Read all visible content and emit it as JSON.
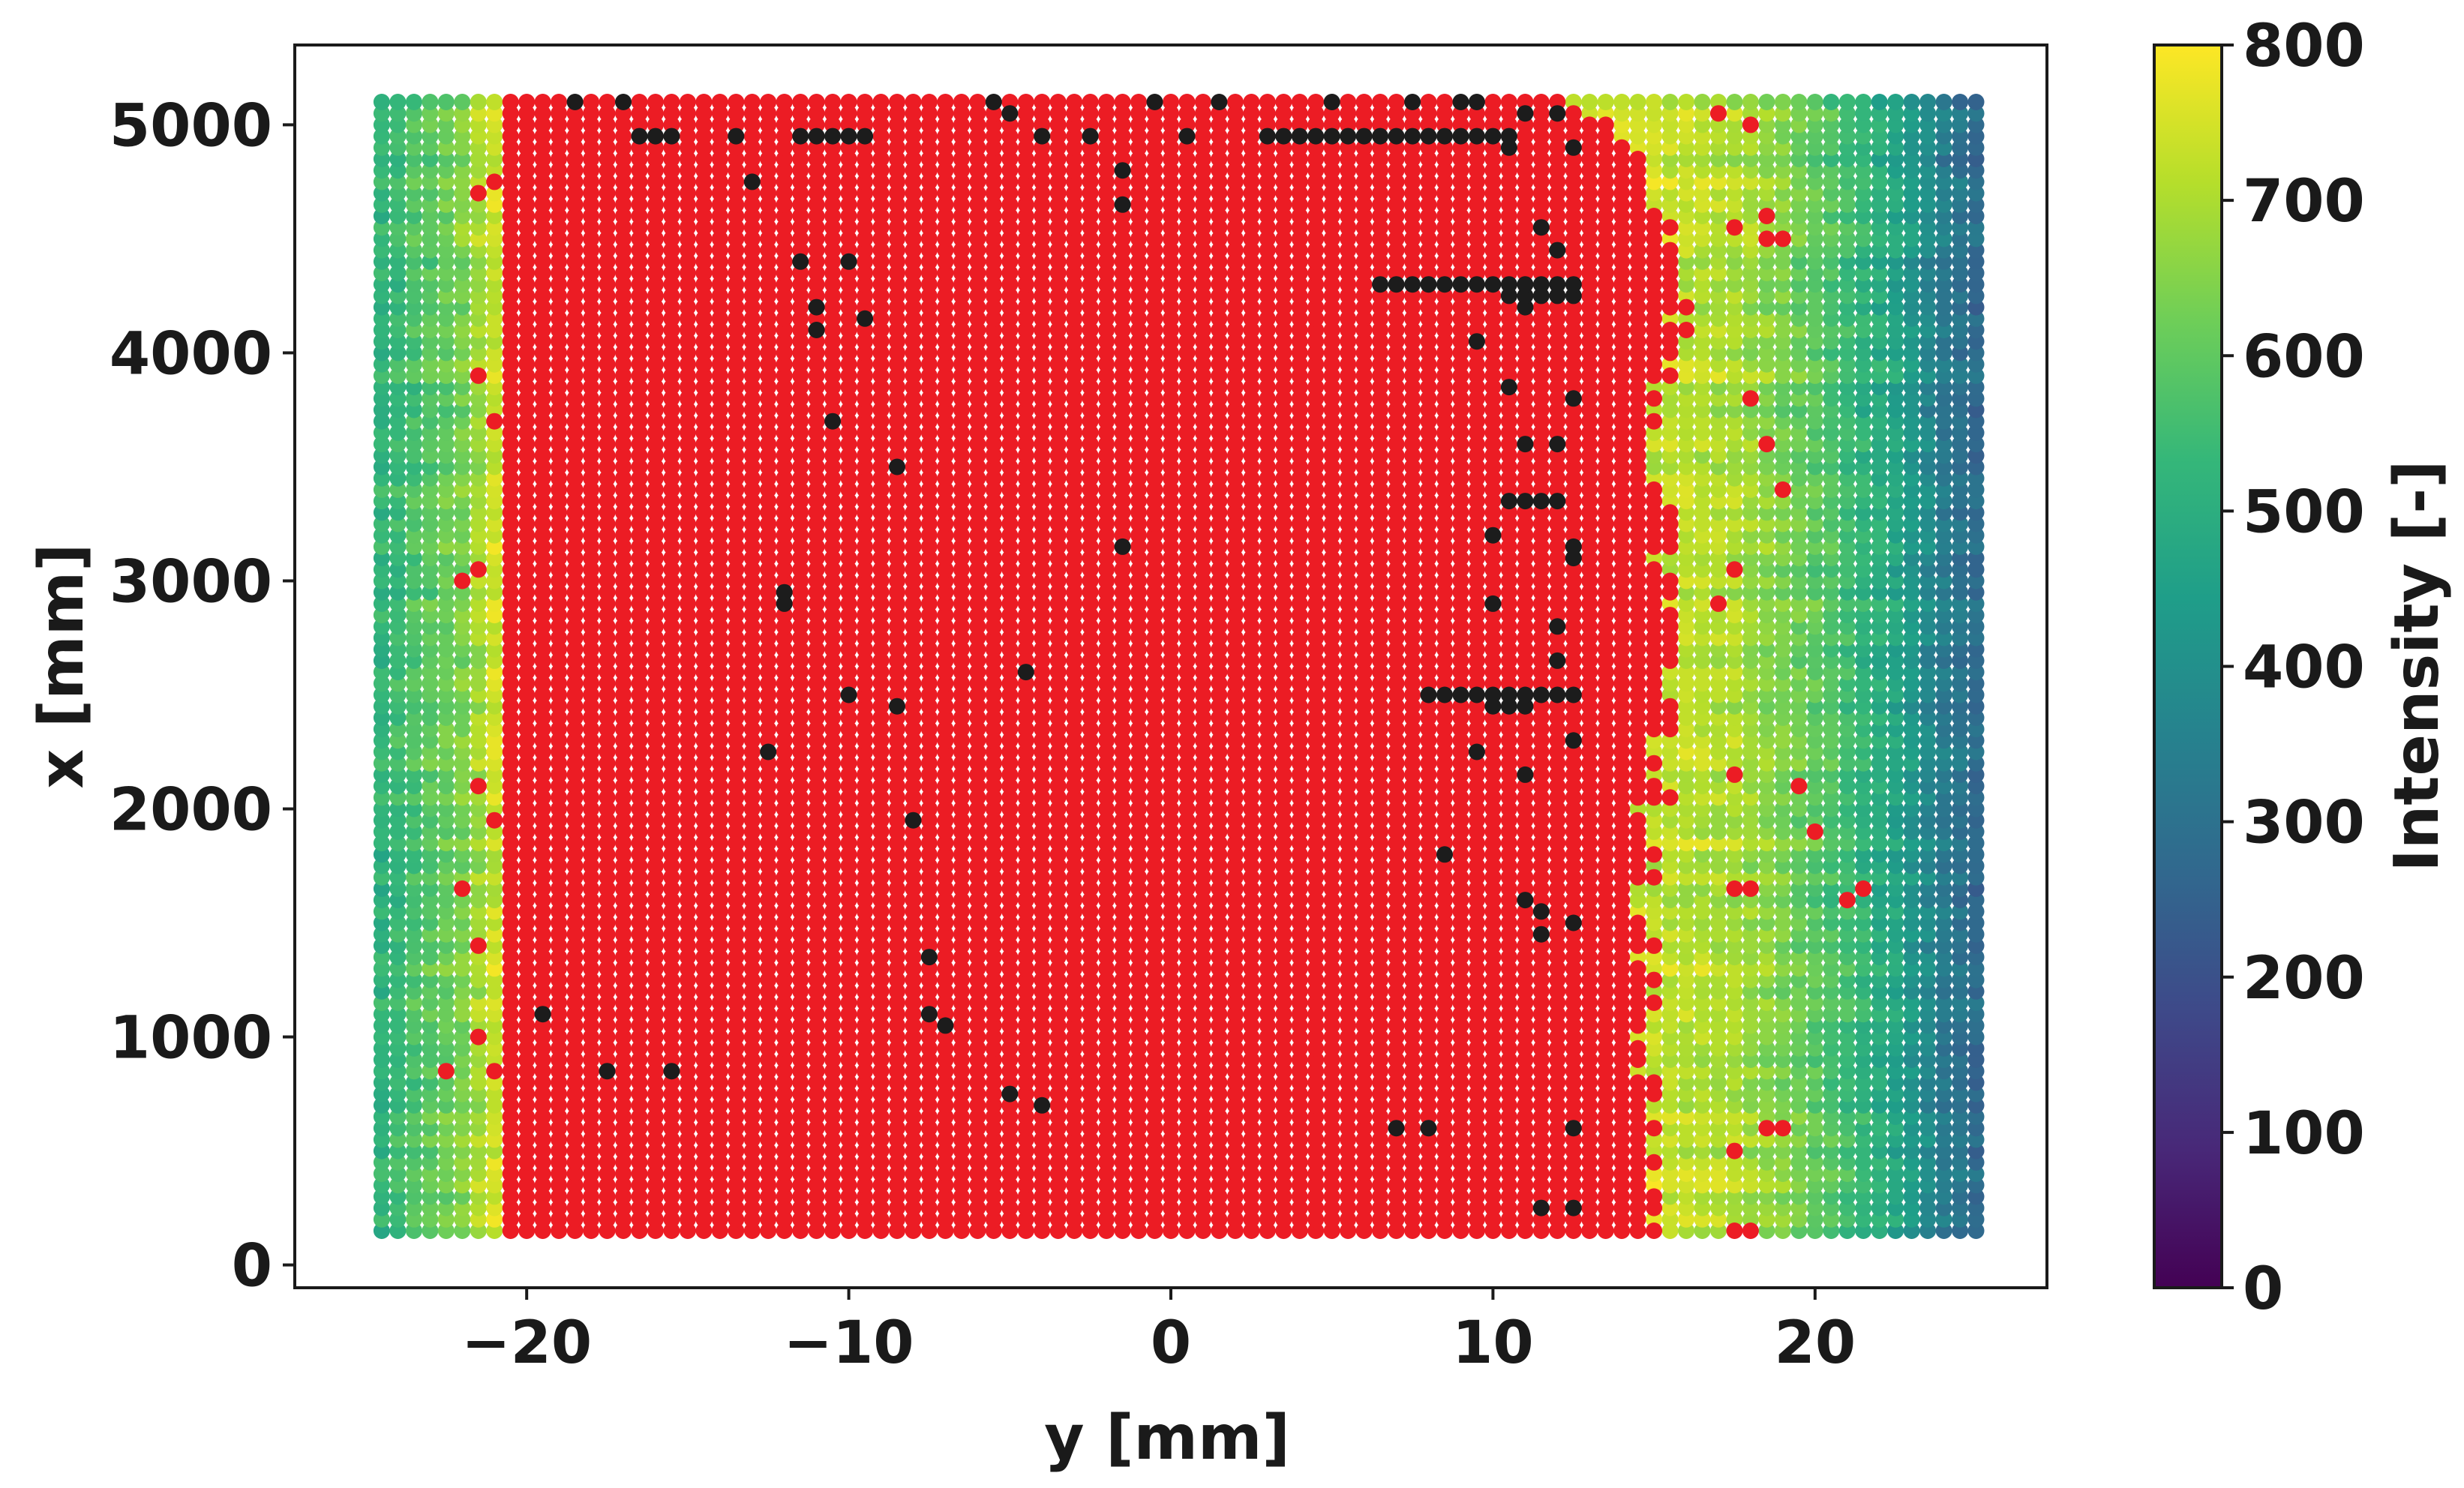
{
  "chart_data": {
    "type": "scatter",
    "title": "",
    "xlabel": "y [mm]",
    "ylabel": "x [mm]",
    "xlim": [
      -27.2,
      27.2
    ],
    "ylim": [
      -100,
      5350
    ],
    "xticks": [
      -20,
      -10,
      0,
      10,
      20
    ],
    "xtick_labels": [
      "−20",
      "−10",
      "0",
      "10",
      "20"
    ],
    "yticks": [
      0,
      1000,
      2000,
      3000,
      4000,
      5000
    ],
    "ytick_labels": [
      "0",
      "1000",
      "2000",
      "3000",
      "4000",
      "5000"
    ],
    "grid": false,
    "legend": "none",
    "grid_spec": {
      "y_values": {
        "start": -24.5,
        "end": 25.0,
        "step": 0.5
      },
      "x_values": {
        "start": 150,
        "end": 5100,
        "step": 50
      }
    },
    "intensity_field": {
      "description": "Intensity of non-flagged points rises from ~520 at the left edge to ~740 near y=-20, ~720 just right of the red region, then falls to ~300 at the right edge",
      "profile_y": [
        -24.5,
        -22.0,
        -21.0,
        12.5,
        15.0,
        17.5,
        20.0,
        22.5,
        24.0,
        25.0
      ],
      "profile_intensity": [
        520,
        640,
        740,
        740,
        730,
        700,
        600,
        470,
        330,
        280
      ]
    },
    "flagged_regions": {
      "red_color": "#ec1c24",
      "black_color": "#1c1c1c",
      "red_left_boundary_y": -20.8,
      "red_right_boundary_profile": {
        "x": [
          150,
          500,
          800,
          1200,
          1600,
          2000,
          2400,
          2800,
          3200,
          3600,
          4000,
          4400,
          4800,
          5100
        ],
        "y": [
          15.2,
          15.0,
          14.8,
          14.6,
          14.4,
          15.0,
          15.4,
          15.6,
          15.3,
          15.0,
          15.5,
          16.0,
          14.5,
          12.8
        ]
      },
      "black_cells": [
        {
          "y": -18.5,
          "x": 5100
        },
        {
          "y": -17.0,
          "x": 5100
        },
        {
          "y": -5.5,
          "x": 5100
        },
        {
          "y": -0.5,
          "x": 5100
        },
        {
          "y": 1.5,
          "x": 5100
        },
        {
          "y": 5.0,
          "x": 5100
        },
        {
          "y": 7.5,
          "x": 5100
        },
        {
          "y": 9.0,
          "x": 5100
        },
        {
          "y": 9.5,
          "x": 5100
        },
        {
          "y": 11.0,
          "x": 5050
        },
        {
          "y": 12.0,
          "x": 5050
        },
        {
          "y": -5.0,
          "x": 5050
        },
        {
          "y": -16.0,
          "x": 4950
        },
        {
          "y": -13.5,
          "x": 4950
        },
        {
          "y": -11.0,
          "x": 4950
        },
        {
          "y": -10.5,
          "x": 4950
        },
        {
          "y": -4.0,
          "x": 4950
        },
        {
          "y": -2.5,
          "x": 4950
        },
        {
          "y": 0.5,
          "x": 4950
        },
        {
          "y": 5.5,
          "x": 4950
        },
        {
          "y": 7.0,
          "x": 4950
        },
        {
          "y": 8.0,
          "x": 4950
        },
        {
          "y": 10.5,
          "x": 4900
        },
        {
          "y": 12.5,
          "x": 4900
        },
        {
          "y": -1.5,
          "x": 4800
        },
        {
          "y": -13.0,
          "x": 4750
        },
        {
          "y": -1.5,
          "x": 4650
        },
        {
          "y": 11.5,
          "x": 4550
        },
        {
          "y": 12.0,
          "x": 4450
        },
        {
          "y": -11.5,
          "x": 4400
        },
        {
          "y": -10.0,
          "x": 4400
        },
        {
          "y": 7.0,
          "x": 4300
        },
        {
          "y": 8.5,
          "x": 4300
        },
        {
          "y": 9.5,
          "x": 4300
        },
        {
          "y": 10.5,
          "x": 4300
        },
        {
          "y": 12.0,
          "x": 4300
        },
        {
          "y": 12.5,
          "x": 4250
        },
        {
          "y": 11.0,
          "x": 4200
        },
        {
          "y": -11.0,
          "x": 4200
        },
        {
          "y": -9.5,
          "x": 4150
        },
        {
          "y": -11.0,
          "x": 4100
        },
        {
          "y": 9.5,
          "x": 4050
        },
        {
          "y": 10.5,
          "x": 3850
        },
        {
          "y": 12.5,
          "x": 3800
        },
        {
          "y": -10.5,
          "x": 3700
        },
        {
          "y": 11.0,
          "x": 3600
        },
        {
          "y": 12.0,
          "x": 3600
        },
        {
          "y": -8.5,
          "x": 3500
        },
        {
          "y": 10.5,
          "x": 3350
        },
        {
          "y": 12.0,
          "x": 3350
        },
        {
          "y": 10.0,
          "x": 3200
        },
        {
          "y": 12.5,
          "x": 3150
        },
        {
          "y": -1.5,
          "x": 3150
        },
        {
          "y": 12.5,
          "x": 3100
        },
        {
          "y": -12.0,
          "x": 2950
        },
        {
          "y": -12.0,
          "x": 2900
        },
        {
          "y": 10.0,
          "x": 2900
        },
        {
          "y": 12.0,
          "x": 2800
        },
        {
          "y": 12.0,
          "x": 2650
        },
        {
          "y": -4.5,
          "x": 2600
        },
        {
          "y": 8.0,
          "x": 2500
        },
        {
          "y": 10.0,
          "x": 2500
        },
        {
          "y": 11.0,
          "x": 2450
        },
        {
          "y": 12.5,
          "x": 2500
        },
        {
          "y": -10.0,
          "x": 2500
        },
        {
          "y": -8.5,
          "x": 2450
        },
        {
          "y": 12.5,
          "x": 2300
        },
        {
          "y": -12.5,
          "x": 2250
        },
        {
          "y": 9.5,
          "x": 2250
        },
        {
          "y": 11.0,
          "x": 2150
        },
        {
          "y": -8.0,
          "x": 1950
        },
        {
          "y": 8.5,
          "x": 1800
        },
        {
          "y": 11.0,
          "x": 1600
        },
        {
          "y": 11.5,
          "x": 1550
        },
        {
          "y": 12.5,
          "x": 1500
        },
        {
          "y": 11.5,
          "x": 1450
        },
        {
          "y": -7.5,
          "x": 1350
        },
        {
          "y": -19.5,
          "x": 1100
        },
        {
          "y": -7.5,
          "x": 1100
        },
        {
          "y": -7.0,
          "x": 1050
        },
        {
          "y": -17.5,
          "x": 850
        },
        {
          "y": -15.5,
          "x": 850
        },
        {
          "y": -5.0,
          "x": 750
        },
        {
          "y": -4.0,
          "x": 700
        },
        {
          "y": 7.0,
          "x": 600
        },
        {
          "y": 8.0,
          "x": 600
        },
        {
          "y": 12.5,
          "x": 600
        },
        {
          "y": 11.5,
          "x": 250
        },
        {
          "y": 12.5,
          "x": 250
        }
      ],
      "black_runs": [
        {
          "y_from": -16.5,
          "y_to": -15.5,
          "x": 4950
        },
        {
          "y_from": -11.5,
          "y_to": -9.5,
          "x": 4950
        },
        {
          "y_from": 3.0,
          "y_to": 10.5,
          "x": 4950
        },
        {
          "y_from": 6.5,
          "y_to": 12.5,
          "x": 4300
        },
        {
          "y_from": 10.5,
          "y_to": 12.5,
          "x": 4250
        },
        {
          "y_from": 10.5,
          "y_to": 12.0,
          "x": 3350
        },
        {
          "y_from": 8.0,
          "y_to": 12.5,
          "x": 2500
        },
        {
          "y_from": 10.0,
          "y_to": 11.0,
          "x": 2450
        }
      ],
      "red_outliers": [
        {
          "y": 19.0,
          "x": 4500
        },
        {
          "y": 18.5,
          "x": 4500
        },
        {
          "y": 17.5,
          "x": 4550
        },
        {
          "y": -21.0,
          "x": 4750
        },
        {
          "y": -21.5,
          "x": 4700
        },
        {
          "y": -21.5,
          "x": 3900
        },
        {
          "y": -21.0,
          "x": 3700
        },
        {
          "y": -22.0,
          "x": 3000
        },
        {
          "y": -21.5,
          "x": 3050
        },
        {
          "y": -21.5,
          "x": 2100
        },
        {
          "y": -21.0,
          "x": 1950
        },
        {
          "y": -22.0,
          "x": 1650
        },
        {
          "y": -21.5,
          "x": 1400
        },
        {
          "y": -22.5,
          "x": 850
        },
        {
          "y": -21.5,
          "x": 1000
        },
        {
          "y": -21.0,
          "x": 850
        },
        {
          "y": 19.5,
          "x": 2100
        },
        {
          "y": 20.0,
          "x": 1900
        },
        {
          "y": 21.0,
          "x": 1600
        },
        {
          "y": 21.5,
          "x": 1650
        },
        {
          "y": 17.5,
          "x": 1650
        },
        {
          "y": 18.5,
          "x": 600
        },
        {
          "y": 19.0,
          "x": 600
        },
        {
          "y": 17.5,
          "x": 500
        },
        {
          "y": 18.0,
          "x": 150
        },
        {
          "y": 17.5,
          "x": 150
        },
        {
          "y": 18.0,
          "x": 3800
        },
        {
          "y": 18.5,
          "x": 3600
        },
        {
          "y": 19.0,
          "x": 3400
        },
        {
          "y": 17.5,
          "x": 2150
        },
        {
          "y": 18.0,
          "x": 1650
        },
        {
          "y": 17.0,
          "x": 2900
        },
        {
          "y": 17.5,
          "x": 3050
        },
        {
          "y": 18.0,
          "x": 5000
        },
        {
          "y": 17.0,
          "x": 5050
        },
        {
          "y": 18.5,
          "x": 4600
        }
      ]
    },
    "colorbar": {
      "label": "Intensity [-]",
      "colormap": "viridis",
      "range": [
        0,
        800
      ],
      "ticks": [
        0,
        100,
        200,
        300,
        400,
        500,
        600,
        700,
        800
      ],
      "tick_labels": [
        "0",
        "100",
        "200",
        "300",
        "400",
        "500",
        "600",
        "700",
        "800"
      ],
      "stops": [
        "#440154",
        "#482878",
        "#3e4989",
        "#31688e",
        "#26828e",
        "#1f9e89",
        "#35b779",
        "#6ece58",
        "#b5de2b",
        "#fde725"
      ]
    },
    "colors": {
      "axis": "#1a1a1a",
      "background": "#ffffff",
      "flag_red": "#ec1c24",
      "flag_black": "#1c1c1c"
    }
  }
}
